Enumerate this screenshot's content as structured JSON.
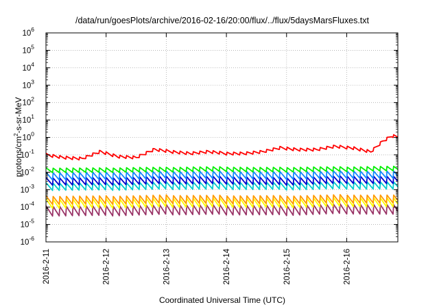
{
  "chart_data": {
    "type": "line",
    "title": "/data/run/goesPlots/archive/2016-02-16/20:00/flux/../flux/5daysMarsFluxes.txt",
    "xlabel": "Coordinated Universal Time (UTC)",
    "ylabel_main": "protons/cm",
    "ylabel_sup": "2",
    "ylabel_rest": "-s-sr-MeV",
    "x_ticks": [
      "2016-2-11",
      "2016-2-12",
      "2016-2-13",
      "2016-2-14",
      "2016-2-15",
      "2016-2-16"
    ],
    "x_tick_days": [
      0,
      1,
      2,
      3,
      4,
      5
    ],
    "xlim_days": [
      0,
      5.85
    ],
    "y_scale": "log",
    "ylim_exp": [
      -6,
      6
    ],
    "y_ticks": [
      {
        "base": "10",
        "exp": "6"
      },
      {
        "base": "10",
        "exp": "5"
      },
      {
        "base": "10",
        "exp": "4"
      },
      {
        "base": "10",
        "exp": "3"
      },
      {
        "base": "10",
        "exp": "2"
      },
      {
        "base": "10",
        "exp": "1"
      },
      {
        "base": "10",
        "exp": "0"
      },
      {
        "base": "10",
        "exp": "-1"
      },
      {
        "base": "10",
        "exp": "-2"
      },
      {
        "base": "10",
        "exp": "-3"
      },
      {
        "base": "10",
        "exp": "-4"
      },
      {
        "base": "10",
        "exp": "-5"
      },
      {
        "base": "10",
        "exp": "-6"
      }
    ],
    "y_tick_exps": [
      6,
      5,
      4,
      3,
      2,
      1,
      0,
      -1,
      -2,
      -3,
      -4,
      -5,
      -6
    ],
    "grid": true,
    "series": [
      {
        "color": "#ff0000",
        "x": [
          0,
          0.3,
          0.6,
          0.9,
          1.2,
          1.5,
          1.8,
          2.1,
          2.4,
          2.7,
          3.0,
          3.3,
          3.6,
          3.9,
          4.2,
          4.5,
          4.8,
          5.1,
          5.4,
          5.6,
          5.75,
          5.85
        ],
        "y": [
          0.1,
          0.07,
          0.06,
          0.15,
          0.08,
          0.07,
          0.2,
          0.15,
          0.12,
          0.15,
          0.12,
          0.12,
          0.15,
          0.25,
          0.2,
          0.2,
          0.3,
          0.25,
          0.15,
          0.6,
          1.2,
          1.1
        ],
        "amp": 0.18
      },
      {
        "color": "#00ee00",
        "x": [
          0,
          0.5,
          1.0,
          1.5,
          2.0,
          2.5,
          3.0,
          3.5,
          4.0,
          4.5,
          5.0,
          5.5,
          5.85
        ],
        "y": [
          0.013,
          0.013,
          0.013,
          0.014,
          0.014,
          0.015,
          0.015,
          0.014,
          0.014,
          0.015,
          0.015,
          0.016,
          0.016
        ],
        "amp": 0.28
      },
      {
        "color": "#1188ff",
        "x": [
          0,
          1.0,
          2.0,
          3.0,
          4.0,
          5.0,
          5.85
        ],
        "y": [
          0.006,
          0.006,
          0.007,
          0.007,
          0.0065,
          0.0075,
          0.007
        ],
        "amp": 0.45
      },
      {
        "color": "#0000cc",
        "x": [
          0,
          1.0,
          2.0,
          3.0,
          4.0,
          5.0,
          5.85
        ],
        "y": [
          0.003,
          0.003,
          0.0035,
          0.0035,
          0.003,
          0.0038,
          0.0035
        ],
        "amp": 0.45
      },
      {
        "color": "#00cccc",
        "x": [
          0,
          1.0,
          2.0,
          3.0,
          4.0,
          5.0,
          5.85
        ],
        "y": [
          0.0015,
          0.0015,
          0.0017,
          0.0017,
          0.0016,
          0.0018,
          0.0017
        ],
        "amp": 0.45
      },
      {
        "color": "#ff9900",
        "x": [
          0,
          1.0,
          2.0,
          3.0,
          4.0,
          5.0,
          5.85
        ],
        "y": [
          0.00025,
          0.00025,
          0.00028,
          0.00027,
          0.00026,
          0.0003,
          0.00028
        ],
        "amp": 0.5
      },
      {
        "color": "#ffff00",
        "x": [
          0,
          1.0,
          2.0,
          3.0,
          4.0,
          5.0,
          5.85
        ],
        "y": [
          0.00016,
          0.00016,
          0.00018,
          0.00018,
          0.00017,
          0.0002,
          0.00018
        ],
        "amp": 0.55
      },
      {
        "color": "#993366",
        "x": [
          0,
          1.0,
          2.0,
          3.0,
          4.0,
          5.0,
          5.85
        ],
        "y": [
          6e-05,
          6e-05,
          7e-05,
          7e-05,
          6.5e-05,
          8e-05,
          7e-05
        ],
        "amp": 0.6
      }
    ]
  }
}
